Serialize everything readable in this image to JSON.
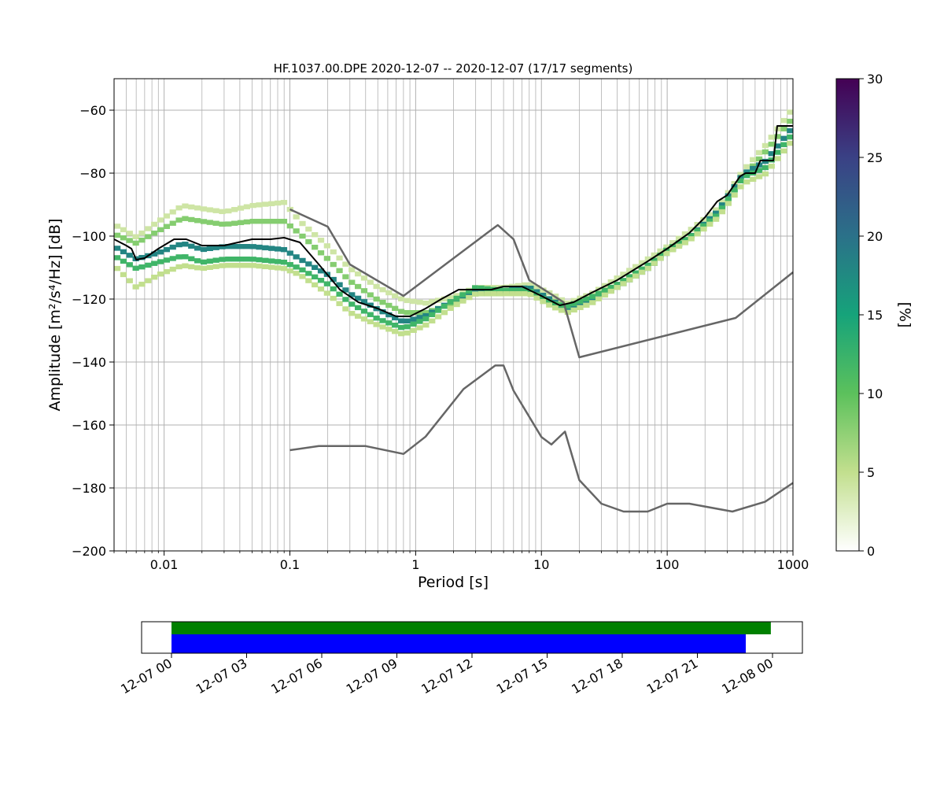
{
  "chart_data": [
    {
      "type": "heatmap",
      "title": "HF.1037.00.DPE   2020-12-07 -- 2020-12-07  (17/17 segments)",
      "xlabel": "Period [s]",
      "ylabel": "Amplitude [m²/s⁴/Hz] [dB]",
      "xscale": "log",
      "xlim": [
        0.004,
        1000
      ],
      "ylim": [
        -200,
        -50
      ],
      "grid": true,
      "xticks": [
        {
          "value": 0.01,
          "label": "0.01"
        },
        {
          "value": 0.1,
          "label": "0.1"
        },
        {
          "value": 1,
          "label": "1"
        },
        {
          "value": 10,
          "label": "10"
        },
        {
          "value": 100,
          "label": "100"
        },
        {
          "value": 1000,
          "label": "1000"
        }
      ],
      "yticks": [
        {
          "value": -60,
          "label": "−60"
        },
        {
          "value": -80,
          "label": "−80"
        },
        {
          "value": -100,
          "label": "−100"
        },
        {
          "value": -120,
          "label": "−120"
        },
        {
          "value": -140,
          "label": "−140"
        },
        {
          "value": -160,
          "label": "−160"
        },
        {
          "value": -180,
          "label": "−180"
        },
        {
          "value": -200,
          "label": "−200"
        }
      ],
      "colorbar": {
        "label": "[%]",
        "range": [
          0,
          30
        ],
        "ticks": [
          {
            "value": 0,
            "label": "0"
          },
          {
            "value": 5,
            "label": "5"
          },
          {
            "value": 10,
            "label": "10"
          },
          {
            "value": 15,
            "label": "15"
          },
          {
            "value": 20,
            "label": "20"
          },
          {
            "value": 25,
            "label": "25"
          },
          {
            "value": 30,
            "label": "30"
          }
        ],
        "colors": [
          "#ffffff",
          "#c2df8e",
          "#5cc15c",
          "#16a37a",
          "#2b7189",
          "#3a4185",
          "#440154"
        ]
      },
      "density_bands": [
        {
          "x": [
            0.004,
            0.006,
            0.009,
            0.014,
            0.02,
            0.03,
            0.05,
            0.09,
            0.12,
            0.2,
            0.3,
            0.5,
            0.8,
            1.2,
            2,
            3,
            5,
            8,
            12,
            16,
            25,
            40,
            70,
            100,
            150,
            250,
            400,
            600,
            1000
          ],
          "y": [
            -96,
            -100,
            -95,
            -90,
            -91,
            -92,
            -90,
            -89,
            -95,
            -103,
            -110,
            -116,
            -120,
            -121,
            -119,
            -116,
            -116,
            -115,
            -118,
            -121,
            -118,
            -113,
            -107,
            -103,
            -98,
            -91,
            -79,
            -71,
            -59
          ],
          "percent": 4
        },
        {
          "x": [
            0.004,
            0.006,
            0.009,
            0.014,
            0.02,
            0.03,
            0.05,
            0.09,
            0.12,
            0.2,
            0.3,
            0.5,
            0.8,
            1.2,
            2,
            3,
            5,
            8,
            12,
            16,
            25,
            40,
            70,
            100,
            150,
            250,
            400,
            600,
            1000
          ],
          "y": [
            -99,
            -102,
            -98,
            -94,
            -95,
            -96,
            -95,
            -95,
            -99,
            -107,
            -114,
            -120,
            -124,
            -124,
            -121,
            -118,
            -118,
            -116,
            -120,
            -122,
            -120,
            -115,
            -109,
            -104,
            -100,
            -93,
            -81,
            -73,
            -62
          ],
          "percent": 8
        },
        {
          "x": [
            0.004,
            0.006,
            0.009,
            0.014,
            0.02,
            0.03,
            0.05,
            0.09,
            0.12,
            0.2,
            0.3,
            0.5,
            0.8,
            1.2,
            2,
            3,
            5,
            8,
            12,
            16,
            25,
            40,
            70,
            100,
            150,
            250,
            400,
            600,
            1000
          ],
          "y": [
            -103,
            -107,
            -105,
            -102,
            -104,
            -103,
            -103,
            -104,
            -107,
            -112,
            -118,
            -123,
            -127,
            -125,
            -120,
            -117,
            -117,
            -116,
            -120,
            -123,
            -120,
            -116,
            -110,
            -105,
            -100,
            -92,
            -80,
            -76,
            -65
          ],
          "percent": 18
        },
        {
          "x": [
            0.004,
            0.006,
            0.009,
            0.014,
            0.02,
            0.03,
            0.05,
            0.09,
            0.12,
            0.2,
            0.3,
            0.5,
            0.8,
            1.2,
            2,
            3,
            5,
            8,
            12,
            16,
            25,
            40,
            70,
            100,
            150,
            250,
            400,
            600,
            1000
          ],
          "y": [
            -106,
            -110,
            -108,
            -106,
            -108,
            -107,
            -107,
            -108,
            -110,
            -115,
            -121,
            -126,
            -129,
            -126,
            -120,
            -116,
            -117,
            -117,
            -121,
            -122,
            -119,
            -115,
            -109,
            -104,
            -100,
            -93,
            -81,
            -78,
            -67
          ],
          "percent": 12
        },
        {
          "x": [
            0.004,
            0.006,
            0.009,
            0.014,
            0.02,
            0.03,
            0.05,
            0.09,
            0.12,
            0.2,
            0.3,
            0.5,
            0.8,
            1.2,
            2,
            3,
            5,
            8,
            12,
            16,
            25,
            40,
            70,
            100,
            150,
            250,
            400,
            600,
            1000
          ],
          "y": [
            -109,
            -116,
            -112,
            -109,
            -110,
            -109,
            -109,
            -110,
            -112,
            -118,
            -124,
            -128,
            -131,
            -128,
            -122,
            -118,
            -118,
            -118,
            -122,
            -124,
            -121,
            -116,
            -110,
            -105,
            -101,
            -94,
            -83,
            -80,
            -69
          ],
          "percent": 5
        }
      ],
      "mean_curve": {
        "x": [
          0.004,
          0.005,
          0.0055,
          0.006,
          0.007,
          0.009,
          0.012,
          0.015,
          0.02,
          0.03,
          0.05,
          0.07,
          0.09,
          0.12,
          0.17,
          0.25,
          0.35,
          0.5,
          0.7,
          0.9,
          1.2,
          1.6,
          2.2,
          3,
          4,
          5,
          7,
          10,
          14,
          18,
          25,
          40,
          70,
          100,
          150,
          200,
          250,
          300,
          380,
          420,
          500,
          550,
          700,
          750,
          1000
        ],
        "y": [
          -101,
          -103,
          -104,
          -107.5,
          -107,
          -104,
          -101,
          -101,
          -103,
          -103,
          -101,
          -101,
          -100.5,
          -102,
          -109,
          -117,
          -121,
          -123,
          -125.5,
          -125.5,
          -123,
          -120,
          -117,
          -117,
          -117,
          -116,
          -116,
          -119,
          -122,
          -121,
          -118,
          -114,
          -108,
          -104,
          -99,
          -94,
          -89,
          -87,
          -81,
          -80,
          -80,
          -76,
          -76,
          -65,
          -65
        ]
      },
      "reference_curves": [
        {
          "x": [
            0.1,
            0.2,
            0.3,
            0.8,
            4,
            4.5,
            6,
            8,
            15,
            20,
            350,
            1000
          ],
          "y": [
            -91.5,
            -97,
            -109,
            -119,
            -98,
            -96.5,
            -101,
            -114,
            -121,
            -138.5,
            -126,
            -111.5
          ]
        },
        {
          "x": [
            0.1,
            0.17,
            0.4,
            0.8,
            1.2,
            2.4,
            4.3,
            5.0,
            6.0,
            10,
            12,
            15.4,
            20,
            30,
            45,
            70,
            100,
            150,
            330,
            600,
            1000
          ],
          "y": [
            -168,
            -166.7,
            -166.7,
            -169.2,
            -163.7,
            -148.6,
            -141.1,
            -141.1,
            -149.1,
            -163.8,
            -166.2,
            -162.1,
            -177.5,
            -185.0,
            -187.5,
            -187.5,
            -185.0,
            -185.0,
            -187.5,
            -184.4,
            -178.4
          ]
        }
      ]
    },
    {
      "type": "timeline",
      "xlim": [
        "2020-12-07T00:00",
        "2020-12-08T00:00"
      ],
      "xticks": [
        "12-07 00",
        "12-07 03",
        "12-07 06",
        "12-07 09",
        "12-07 12",
        "12-07 15",
        "12-07 18",
        "12-07 21",
        "12-08 00"
      ],
      "bars": [
        {
          "start": "2020-12-07T00:00",
          "end": "2020-12-07T23:56",
          "color": "#008000"
        },
        {
          "start": "2020-12-07T00:00",
          "end": "2020-12-07T22:56",
          "color": "#0000ff"
        }
      ]
    }
  ]
}
